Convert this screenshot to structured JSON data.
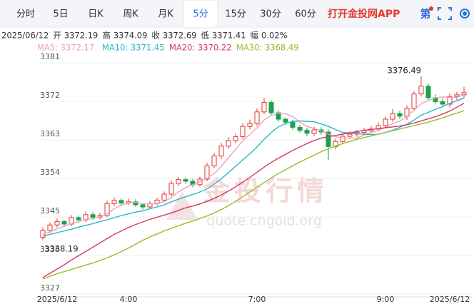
{
  "header": {
    "tabs": [
      "分时",
      "5日",
      "日K",
      "周K",
      "月K",
      "5分",
      "15分",
      "30分",
      "60分"
    ],
    "active_tab": "5分",
    "app_link": "打开金投网APP",
    "icon_text": "第"
  },
  "info": [
    "2025/06/12",
    "开",
    "3372.19",
    "高",
    "3374.09",
    "收",
    "3372.69",
    "低",
    "3371.41",
    "幅",
    "0.02%"
  ],
  "watermark": {
    "title": "金投行情",
    "url": "quote.cngold.org"
  },
  "chart_data": {
    "type": "candlestick",
    "categories": [
      null,
      null,
      "2025/6/12",
      null,
      null,
      null,
      null,
      null,
      null,
      null,
      null,
      null,
      "4:00",
      null,
      null,
      null,
      null,
      null,
      null,
      null,
      null,
      null,
      null,
      null,
      null,
      null,
      null,
      null,
      null,
      null,
      "7:00",
      null,
      null,
      null,
      null,
      null,
      null,
      null,
      null,
      null,
      null,
      null,
      null,
      null,
      null,
      null,
      null,
      null,
      "9:00",
      null,
      null,
      null,
      null,
      null,
      null,
      null,
      null,
      "2025/6/12",
      null,
      null
    ],
    "open": [
      3338.9,
      3340.5,
      3341.8,
      3342.6,
      3342.0,
      3343.5,
      3343.0,
      3344.2,
      3343.6,
      3344.0,
      3346.8,
      3347.5,
      3346.9,
      3347.2,
      3346.5,
      3346.0,
      3346.8,
      3347.6,
      3349.0,
      3351.5,
      3352.4,
      3352.0,
      3351.2,
      3352.5,
      3355.6,
      3357.9,
      3360.2,
      3361.5,
      3362.4,
      3364.8,
      3365.5,
      3368.2,
      3370.4,
      3368.0,
      3366.5,
      3365.8,
      3364.6,
      3363.9,
      3363.2,
      3364.0,
      3363.5,
      3360.1,
      3361.3,
      3362.5,
      3363.0,
      3363.4,
      3363.8,
      3364.2,
      3365.0,
      3366.5,
      3367.8,
      3367.2,
      3369.0,
      3372.4,
      3374.2,
      3371.5,
      3370.6,
      3370.0,
      3371.8,
      3372.19
    ],
    "high": [
      3341.2,
      3342.4,
      3343.3,
      3343.0,
      3344.1,
      3344.0,
      3344.9,
      3344.8,
      3344.6,
      3347.5,
      3348.2,
      3348.0,
      3347.9,
      3347.8,
      3346.9,
      3347.4,
      3348.1,
      3349.6,
      3352.2,
      3353.0,
      3352.9,
      3352.6,
      3353.1,
      3356.3,
      3358.6,
      3360.9,
      3362.3,
      3363.1,
      3365.5,
      3366.4,
      3369.0,
      3371.5,
      3370.9,
      3368.6,
      3366.9,
      3366.4,
      3365.2,
      3364.5,
      3364.7,
      3364.6,
      3364.1,
      3361.9,
      3363.1,
      3363.6,
      3364.0,
      3364.5,
      3364.9,
      3365.7,
      3367.1,
      3368.9,
      3368.5,
      3369.7,
      3373.0,
      3376.49,
      3374.8,
      3372.3,
      3371.4,
      3372.5,
      3372.9,
      3374.09
    ],
    "low": [
      3338.19,
      3339.9,
      3341.2,
      3341.4,
      3341.5,
      3342.4,
      3342.5,
      3343.0,
      3343.1,
      3343.6,
      3346.2,
      3346.3,
      3346.4,
      3346.0,
      3345.4,
      3345.5,
      3346.3,
      3347.1,
      3348.5,
      3350.9,
      3351.4,
      3350.6,
      3350.7,
      3352.0,
      3355.0,
      3357.2,
      3359.6,
      3360.9,
      3361.8,
      3364.1,
      3364.9,
      3367.6,
      3367.4,
      3365.9,
      3365.1,
      3364.0,
      3363.3,
      3362.5,
      3362.6,
      3362.9,
      3357.0,
      3359.4,
      3360.7,
      3361.9,
      3362.4,
      3362.8,
      3363.2,
      3363.6,
      3364.4,
      3365.9,
      3366.5,
      3366.3,
      3368.4,
      3371.8,
      3370.9,
      3369.9,
      3369.4,
      3369.3,
      3371.0,
      3371.41
    ],
    "close": [
      3340.5,
      3341.8,
      3342.6,
      3342.0,
      3343.5,
      3343.0,
      3344.2,
      3343.6,
      3344.0,
      3346.8,
      3347.5,
      3346.9,
      3347.2,
      3346.5,
      3346.0,
      3346.8,
      3347.6,
      3349.0,
      3351.5,
      3352.4,
      3352.0,
      3351.2,
      3352.5,
      3355.6,
      3357.9,
      3360.2,
      3361.5,
      3362.4,
      3364.8,
      3365.5,
      3368.2,
      3370.4,
      3368.0,
      3366.5,
      3365.8,
      3364.6,
      3363.9,
      3363.2,
      3364.0,
      3363.5,
      3360.1,
      3361.3,
      3362.5,
      3363.0,
      3363.4,
      3363.8,
      3364.2,
      3365.0,
      3366.5,
      3367.8,
      3367.2,
      3369.0,
      3372.4,
      3374.2,
      3371.5,
      3370.6,
      3370.0,
      3371.8,
      3372.2,
      3372.69
    ],
    "up_color": "#e5362b",
    "down_color": "#17a34a",
    "high_label": "3376.49",
    "low_label": "3338.19",
    "series": [
      {
        "name": "MA5: 3372.17",
        "color": "#eaa2bd",
        "values": [
          3339.6,
          3340.2,
          3340.9,
          3341.5,
          3342.1,
          3342.6,
          3343.1,
          3343.3,
          3343.7,
          3344.4,
          3345.6,
          3346.4,
          3346.9,
          3347.1,
          3346.8,
          3346.7,
          3346.8,
          3347.2,
          3348.2,
          3349.5,
          3350.5,
          3351.2,
          3351.9,
          3352.7,
          3353.8,
          3355.5,
          3357.5,
          3359.5,
          3361.4,
          3362.9,
          3364.5,
          3366.3,
          3367.4,
          3367.9,
          3367.8,
          3367.1,
          3365.8,
          3364.8,
          3364.3,
          3363.8,
          3363.0,
          3362.4,
          3362.1,
          3362.1,
          3362.1,
          3362.8,
          3363.4,
          3363.9,
          3364.6,
          3365.5,
          3366.1,
          3367.1,
          3368.6,
          3370.1,
          3370.9,
          3371.5,
          3371.7,
          3371.6,
          3371.6,
          3372.17
        ]
      },
      {
        "name": "MA10: 3371.45",
        "color": "#2bb5c8",
        "values": [
          3339.2,
          3339.6,
          3340.0,
          3340.4,
          3340.8,
          3341.3,
          3341.7,
          3342.1,
          3342.6,
          3343.0,
          3343.5,
          3344.0,
          3344.4,
          3344.8,
          3345.1,
          3345.6,
          3346.0,
          3346.5,
          3347.2,
          3347.8,
          3348.4,
          3348.9,
          3349.5,
          3350.2,
          3351.3,
          3352.6,
          3354.0,
          3355.5,
          3357.0,
          3358.4,
          3360.0,
          3361.8,
          3363.4,
          3364.7,
          3365.5,
          3366.0,
          3366.1,
          3366.0,
          3365.9,
          3365.4,
          3364.8,
          3364.1,
          3363.4,
          3363.3,
          3363.1,
          3363.0,
          3362.9,
          3363.0,
          3363.4,
          3363.9,
          3364.6,
          3365.3,
          3366.3,
          3367.4,
          3368.1,
          3368.8,
          3369.4,
          3370.2,
          3370.8,
          3371.45
        ]
      },
      {
        "name": "MA20: 3370.22",
        "color": "#d33a6b",
        "values": [
          3329.5,
          3330.5,
          3331.5,
          3332.5,
          3333.6,
          3334.6,
          3335.6,
          3336.6,
          3337.6,
          3338.6,
          3339.6,
          3340.4,
          3341.2,
          3341.9,
          3342.5,
          3343.1,
          3343.6,
          3344.1,
          3344.6,
          3345.2,
          3345.8,
          3346.2,
          3346.7,
          3347.3,
          3348.0,
          3348.8,
          3349.7,
          3350.7,
          3351.8,
          3352.9,
          3354.1,
          3355.3,
          3356.4,
          3357.4,
          3358.3,
          3359.2,
          3360.0,
          3360.8,
          3361.5,
          3362.1,
          3362.4,
          3362.7,
          3363.0,
          3363.3,
          3363.6,
          3363.9,
          3364.1,
          3364.3,
          3364.5,
          3364.7,
          3364.9,
          3365.2,
          3365.6,
          3366.1,
          3366.6,
          3367.1,
          3367.7,
          3368.4,
          3369.3,
          3370.22
        ]
      },
      {
        "name": "MA30: 3368.49",
        "color": "#9dba2e",
        "values": [
          3329.2,
          3329.8,
          3330.4,
          3330.9,
          3331.4,
          3331.9,
          3332.4,
          3332.9,
          3333.5,
          3334.1,
          3334.8,
          3335.6,
          3336.4,
          3337.3,
          3338.2,
          3339.0,
          3339.7,
          3340.4,
          3341.0,
          3341.6,
          3342.2,
          3342.7,
          3343.3,
          3343.9,
          3344.6,
          3345.4,
          3346.3,
          3347.3,
          3348.4,
          3349.5,
          3350.6,
          3351.7,
          3352.8,
          3353.8,
          3354.7,
          3355.6,
          3356.5,
          3357.3,
          3358.1,
          3358.9,
          3359.6,
          3360.2,
          3360.8,
          3361.3,
          3361.8,
          3362.2,
          3362.6,
          3363.0,
          3363.4,
          3363.8,
          3364.2,
          3364.6,
          3365.0,
          3365.4,
          3365.8,
          3366.3,
          3366.8,
          3367.4,
          3367.9,
          3368.49
        ]
      }
    ],
    "ylim": [
      3325,
      3384
    ],
    "yticks": [
      3327,
      3336,
      3345,
      3354,
      3363,
      3372,
      3381
    ],
    "grid": true
  }
}
